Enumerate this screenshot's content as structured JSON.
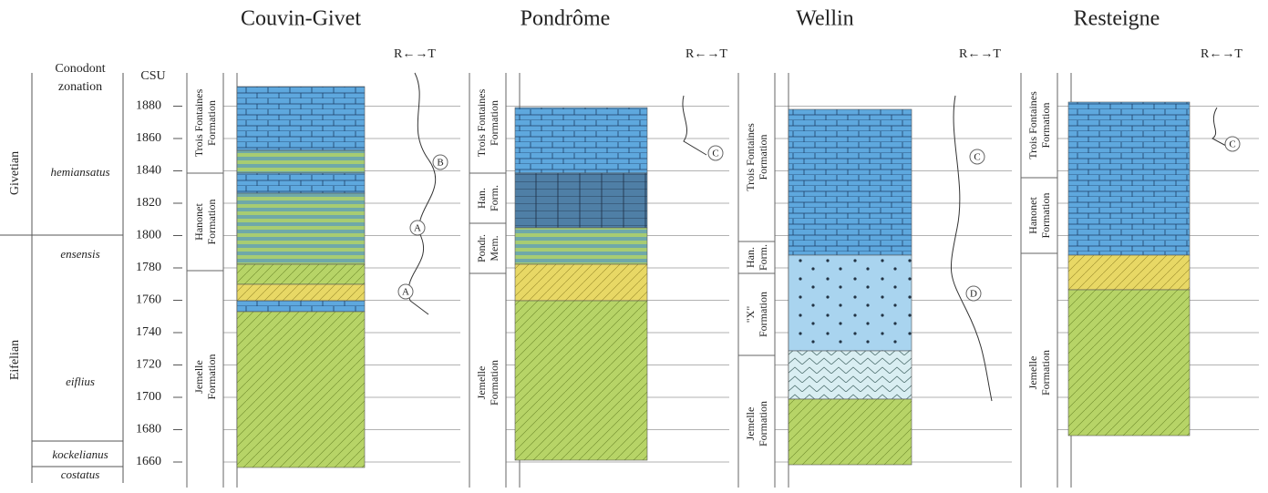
{
  "left": {
    "zonation_header": [
      "Conodont",
      "zonation"
    ],
    "csu_header": "CSU",
    "csu_values": [
      1660,
      1680,
      1700,
      1720,
      1740,
      1760,
      1780,
      1800,
      1820,
      1840,
      1860,
      1880
    ],
    "stages": [
      "Givetian",
      "Eifelian"
    ],
    "zones": [
      "hemiansatus",
      "ensensis",
      "eiflius",
      "kockelianus",
      "costatus"
    ]
  },
  "sections": [
    {
      "title": "Couvin-Givet",
      "rt": "R←→T",
      "formations": [
        {
          "lines": [
            "Trois Fontaines",
            "Formation"
          ]
        },
        {
          "lines": [
            "Hanonet",
            "Formation"
          ]
        },
        {
          "lines": [
            "Jemelle",
            "Formation"
          ]
        }
      ],
      "markers": [
        "B",
        "A",
        "A"
      ]
    },
    {
      "title": "Pondrôme",
      "rt": "R←→T",
      "formations": [
        {
          "lines": [
            "Trois Fontaines",
            "Formation"
          ]
        },
        {
          "lines": [
            "Han.",
            "Form."
          ]
        },
        {
          "lines": [
            "Pondr.",
            "Mem."
          ]
        },
        {
          "lines": [
            "Jemelle",
            "Formation"
          ]
        }
      ],
      "markers": [
        "C"
      ]
    },
    {
      "title": "Wellin",
      "rt": "R←→T",
      "formations": [
        {
          "lines": [
            "Trois Fontaines",
            "Formation"
          ]
        },
        {
          "lines": [
            "Han.",
            "Form."
          ]
        },
        {
          "lines": [
            "\"X\"",
            "Formation"
          ]
        },
        {
          "lines": [
            "Jemelle",
            "Formation"
          ]
        }
      ],
      "markers": [
        "C",
        "D"
      ]
    },
    {
      "title": "Resteigne",
      "rt": "R←→T",
      "formations": [
        {
          "lines": [
            "Trois Fontaines",
            "Formation"
          ]
        },
        {
          "lines": [
            "Hanonet",
            "Formation"
          ]
        },
        {
          "lines": [
            "Jemelle",
            "Formation"
          ]
        }
      ],
      "markers": [
        "C"
      ]
    }
  ]
}
